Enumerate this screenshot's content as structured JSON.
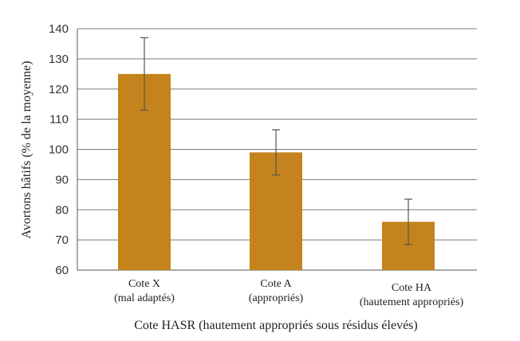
{
  "chart_data": {
    "type": "bar",
    "categories": [
      [
        "Cote X",
        "(mal adaptés)"
      ],
      [
        "Cote A",
        "(appropriés)"
      ],
      [
        "Cote HA",
        "(hautement appropriés)"
      ]
    ],
    "values": [
      125,
      99,
      76
    ],
    "error_low": [
      113,
      91.5,
      68.5
    ],
    "error_high": [
      137,
      106.5,
      83.5
    ],
    "xlabel": "Cote HASR (hautement appropriés sous résidus élevés)",
    "ylabel": "Avortons hâtifs  (% de la moyenne)",
    "ylim": [
      60,
      140
    ],
    "yticks": [
      60,
      70,
      80,
      90,
      100,
      110,
      120,
      130,
      140
    ],
    "grid": true,
    "bar_color": "#c4831c",
    "grid_color": "#7a7a7a"
  }
}
